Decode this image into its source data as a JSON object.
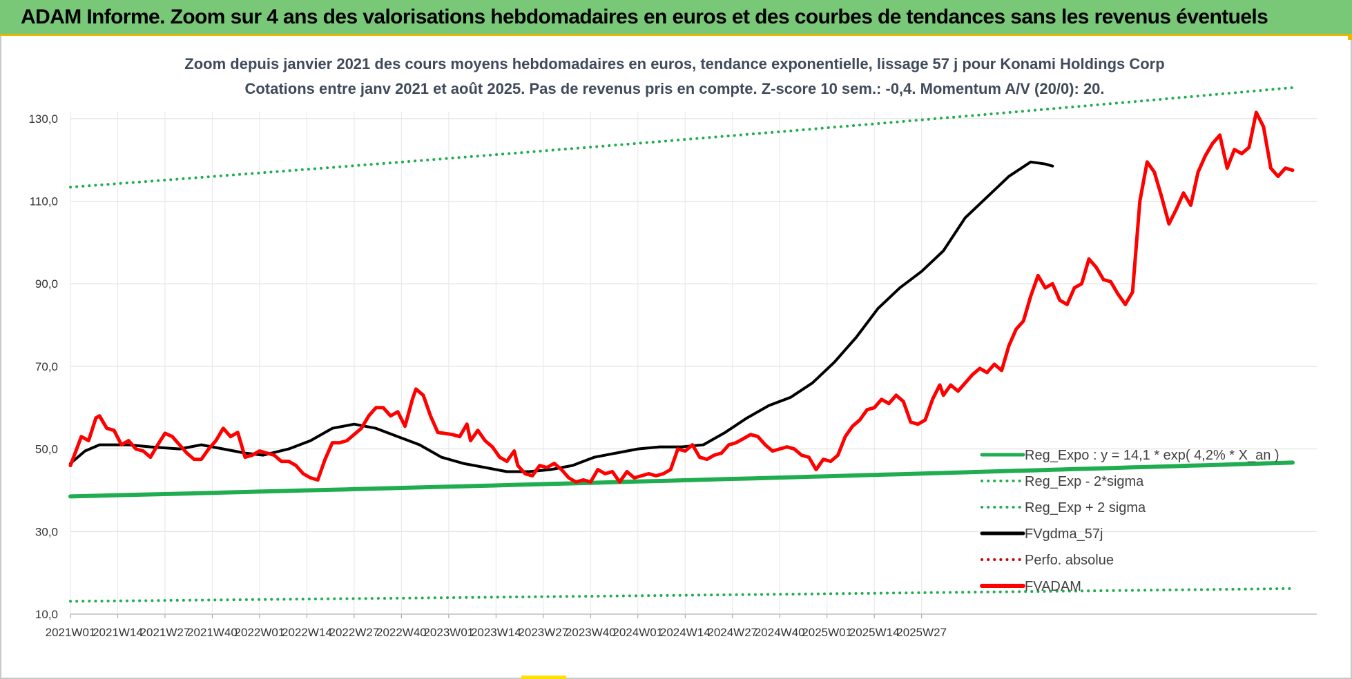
{
  "banner": {
    "title": "ADAM Informe. Zoom sur 4 ans des valorisations hebdomadaires en euros et des courbes de tendances sans les revenus éventuels"
  },
  "colors": {
    "banner_bg": "#78c878",
    "trend_green": "#1fad50",
    "sigma_green": "#1fad50",
    "smooth_black": "#000000",
    "price_red": "#ff0000",
    "perf_red": "#cc0000"
  },
  "chart_data": {
    "type": "line",
    "title": "Zoom depuis janvier 2021 des cours moyens hebdomadaires en euros, tendance exponentielle, lissage 57 j pour Konami Holdings Corp",
    "subtitle": "Cotations entre janv 2021 et août 2025.  Pas de revenus pris en compte. Z-score 10 sem.: -0,4. Momentum A/V (20/0): 20.",
    "xlabel": "",
    "ylabel": "",
    "ylim": [
      10,
      140
    ],
    "yticks": [
      "10,0",
      "30,0",
      "50,0",
      "70,0",
      "90,0",
      "110,0",
      "130,0"
    ],
    "ytick_values": [
      10,
      30,
      50,
      70,
      90,
      110,
      130
    ],
    "grid": true,
    "legend_position": "bottom-right",
    "x_start_week": "2021W01",
    "x_end_week": "2025W31",
    "xticks": [
      "2021W01",
      "2021W14",
      "2021W27",
      "2021W40",
      "2022W01",
      "2022W14",
      "2022W27",
      "2022W40",
      "2023W01",
      "2023W14",
      "2023W27",
      "2023W40",
      "2024W01",
      "2024W14",
      "2024W27",
      "2024W40",
      "2025W01",
      "2025W14",
      "2025W27"
    ],
    "series": [
      {
        "name": "Reg_Expo : y = 14,1 * exp( 4,2% *  X_an )",
        "style": "solid",
        "color": "#1fad50",
        "values": [
          38.5,
          46.7
        ]
      },
      {
        "name": "Reg_Exp - 2*sigma",
        "style": "dotted",
        "color": "#1fad50",
        "values": [
          13.1,
          16.2
        ]
      },
      {
        "name": "Reg_Exp + 2 sigma",
        "style": "dotted",
        "color": "#1fad50",
        "values": [
          113.4,
          137.5
        ]
      },
      {
        "name": "FVgdma_57j",
        "style": "solid",
        "color": "#000000",
        "points": [
          [
            0,
            46.5
          ],
          [
            4,
            49.5
          ],
          [
            8,
            51
          ],
          [
            16,
            51
          ],
          [
            22,
            50.5
          ],
          [
            30,
            50
          ],
          [
            36,
            51
          ],
          [
            42,
            50
          ],
          [
            48,
            49
          ],
          [
            53,
            48.5
          ],
          [
            60,
            50
          ],
          [
            66,
            52
          ],
          [
            72,
            55
          ],
          [
            78,
            56
          ],
          [
            84,
            55
          ],
          [
            90,
            53
          ],
          [
            96,
            51
          ],
          [
            102,
            48
          ],
          [
            108,
            46.5
          ],
          [
            114,
            45.5
          ],
          [
            120,
            44.5
          ],
          [
            126,
            44.5
          ],
          [
            132,
            45
          ],
          [
            138,
            46
          ],
          [
            144,
            48
          ],
          [
            150,
            49
          ],
          [
            156,
            50
          ],
          [
            162,
            50.5
          ],
          [
            168,
            50.5
          ],
          [
            174,
            51
          ],
          [
            180,
            54
          ],
          [
            186,
            57.5
          ],
          [
            192,
            60.5
          ],
          [
            198,
            62.5
          ],
          [
            204,
            66
          ],
          [
            210,
            71
          ],
          [
            216,
            77
          ],
          [
            222,
            84
          ],
          [
            228,
            89
          ],
          [
            234,
            93
          ],
          [
            240,
            98
          ],
          [
            246,
            106
          ],
          [
            252,
            111
          ],
          [
            258,
            116
          ],
          [
            264,
            119.5
          ],
          [
            268,
            119
          ],
          [
            270,
            118.5
          ]
        ]
      },
      {
        "name": "Perfo. absolue",
        "style": "dotted",
        "color": "#cc0000",
        "values": []
      },
      {
        "name": "FVADAM",
        "style": "solid",
        "color": "#ff0000",
        "points": [
          [
            0,
            46
          ],
          [
            3,
            53
          ],
          [
            5,
            52
          ],
          [
            7,
            57.5
          ],
          [
            8,
            58
          ],
          [
            10,
            55
          ],
          [
            12,
            54.5
          ],
          [
            14,
            51
          ],
          [
            16,
            52
          ],
          [
            18,
            50
          ],
          [
            20,
            49.5
          ],
          [
            22,
            48
          ],
          [
            24,
            51
          ],
          [
            26,
            53.8
          ],
          [
            28,
            53
          ],
          [
            30,
            51
          ],
          [
            32,
            49
          ],
          [
            34,
            47.5
          ],
          [
            36,
            47.5
          ],
          [
            38,
            50
          ],
          [
            40,
            52
          ],
          [
            42,
            55
          ],
          [
            44,
            53
          ],
          [
            46,
            54
          ],
          [
            48,
            48
          ],
          [
            50,
            48.5
          ],
          [
            52,
            49.5
          ],
          [
            56,
            48.5
          ],
          [
            58,
            47
          ],
          [
            60,
            47
          ],
          [
            62,
            46
          ],
          [
            64,
            44
          ],
          [
            66,
            43
          ],
          [
            68,
            42.5
          ],
          [
            70,
            47.5
          ],
          [
            72,
            51.5
          ],
          [
            74,
            51.5
          ],
          [
            76,
            52
          ],
          [
            80,
            55
          ],
          [
            82,
            58
          ],
          [
            84,
            60
          ],
          [
            86,
            60
          ],
          [
            88,
            58
          ],
          [
            90,
            59
          ],
          [
            92,
            55.5
          ],
          [
            94,
            62
          ],
          [
            95,
            64.5
          ],
          [
            97,
            63
          ],
          [
            99,
            58
          ],
          [
            101,
            54
          ],
          [
            105,
            53.5
          ],
          [
            107,
            53
          ],
          [
            109,
            56
          ],
          [
            110,
            52
          ],
          [
            112,
            54.5
          ],
          [
            114,
            52
          ],
          [
            116,
            50.5
          ],
          [
            118,
            48
          ],
          [
            120,
            47
          ],
          [
            122,
            49.5
          ],
          [
            123,
            46
          ],
          [
            125,
            44
          ],
          [
            127,
            43.5
          ],
          [
            129,
            46
          ],
          [
            131,
            45.5
          ],
          [
            133,
            46.5
          ],
          [
            135,
            45
          ],
          [
            137,
            43
          ],
          [
            139,
            42
          ],
          [
            141,
            42.5
          ],
          [
            143,
            42
          ],
          [
            145,
            45
          ],
          [
            147,
            44
          ],
          [
            149,
            44.5
          ],
          [
            151,
            42
          ],
          [
            153,
            44.5
          ],
          [
            155,
            43
          ],
          [
            157,
            43.5
          ],
          [
            159,
            44
          ],
          [
            161,
            43.5
          ],
          [
            163,
            44
          ],
          [
            165,
            45
          ],
          [
            167,
            50
          ],
          [
            169,
            49.5
          ],
          [
            171,
            51
          ],
          [
            173,
            48
          ],
          [
            175,
            47.5
          ],
          [
            177,
            48.5
          ],
          [
            179,
            49
          ],
          [
            181,
            51
          ],
          [
            183,
            51.5
          ],
          [
            185,
            52.5
          ],
          [
            187,
            53.5
          ],
          [
            189,
            53
          ],
          [
            191,
            51
          ],
          [
            193,
            49.5
          ],
          [
            195,
            50
          ],
          [
            197,
            50.5
          ],
          [
            199,
            50
          ],
          [
            201,
            48.5
          ],
          [
            203,
            48
          ],
          [
            205,
            45
          ],
          [
            207,
            47.5
          ],
          [
            209,
            47
          ],
          [
            211,
            48.5
          ],
          [
            213,
            53
          ],
          [
            215,
            55.5
          ],
          [
            217,
            57
          ],
          [
            219,
            59.5
          ],
          [
            221,
            60
          ],
          [
            223,
            62
          ],
          [
            225,
            61
          ],
          [
            227,
            63
          ],
          [
            229,
            61.5
          ],
          [
            231,
            56.5
          ],
          [
            233,
            56
          ],
          [
            235,
            57
          ],
          [
            237,
            62
          ],
          [
            239,
            65.5
          ],
          [
            240,
            63
          ],
          [
            242,
            65.5
          ],
          [
            244,
            64
          ],
          [
            246,
            66
          ],
          [
            248,
            68
          ],
          [
            250,
            69.5
          ],
          [
            252,
            68.5
          ],
          [
            254,
            70.5
          ],
          [
            256,
            69
          ],
          [
            258,
            75
          ],
          [
            260,
            79
          ],
          [
            262,
            81
          ],
          [
            264,
            87
          ],
          [
            266,
            92
          ],
          [
            268,
            89
          ],
          [
            270,
            90
          ],
          [
            272,
            86
          ],
          [
            274,
            85
          ],
          [
            276,
            89
          ],
          [
            278,
            90
          ],
          [
            280,
            96
          ],
          [
            282,
            94
          ],
          [
            284,
            91
          ],
          [
            286,
            90.5
          ],
          [
            288,
            87.5
          ],
          [
            290,
            85
          ],
          [
            292,
            88
          ],
          [
            294,
            110
          ],
          [
            296,
            119.5
          ],
          [
            298,
            117
          ],
          [
            300,
            111
          ],
          [
            302,
            104.5
          ],
          [
            304,
            108
          ],
          [
            306,
            112
          ],
          [
            308,
            109
          ],
          [
            310,
            117
          ],
          [
            312,
            121
          ],
          [
            314,
            124
          ],
          [
            316,
            126
          ],
          [
            318,
            118
          ],
          [
            320,
            122.5
          ],
          [
            322,
            121.5
          ],
          [
            324,
            123
          ],
          [
            326,
            131.5
          ],
          [
            328,
            128
          ],
          [
            330,
            118
          ],
          [
            332,
            116
          ],
          [
            334,
            118
          ],
          [
            336,
            117.5
          ]
        ]
      }
    ]
  }
}
